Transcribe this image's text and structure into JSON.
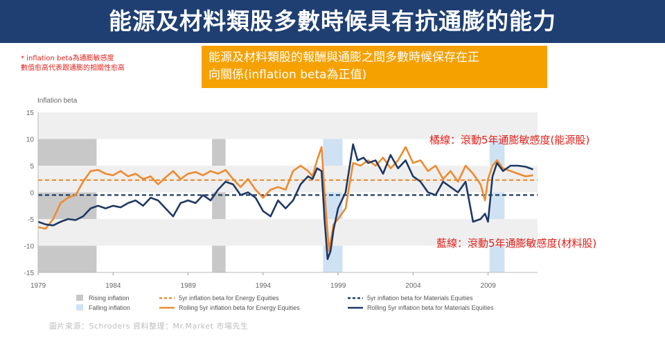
{
  "slide": {
    "title": "能源及材料類股多數時候具有抗通膨的能力",
    "footnote_line1": "* inflation  beta為通膨敏感度",
    "footnote_line2": "數值愈高代表跟通膨的相關性愈高",
    "callout_line1": "能源及材料類股的報酬與通膨之間多數時候保存在正",
    "callout_line2": "向關係(inflation beta為正值)",
    "annotation_orange": "橘線：滾動5年通膨敏感度(能源股)",
    "annotation_blue": "藍線：滾動5年通膨敏感度(材料股)",
    "source": "圖片來源：Schroders      資料整理：Mr.Market  市場先生"
  },
  "colors": {
    "title_bar": "#1f3f73",
    "callout": "#f5a100",
    "annotation": "#e0201a",
    "energy": "#ef8a2e",
    "materials": "#1f3864",
    "rising": "#c8c8c8",
    "falling": "#cfe2f4"
  },
  "chart_data": {
    "type": "line",
    "ylabel": "Inflation beta",
    "xlim": [
      1979,
      2012.3
    ],
    "ylim": [
      -15,
      15
    ],
    "y_ticks": [
      "15",
      "10",
      "5",
      "0",
      "-5",
      "-10",
      "-15"
    ],
    "x_ticks": [
      "1979",
      "1984",
      "1989",
      "1994",
      "1999",
      "2004",
      "2009"
    ],
    "shaded_periods": [
      {
        "type": "rising",
        "start": 1979.0,
        "end": 1982.9
      },
      {
        "type": "rising",
        "start": 1990.6,
        "end": 1991.5
      },
      {
        "type": "falling",
        "start": 1998.0,
        "end": 1999.3
      },
      {
        "type": "falling",
        "start": 2009.1,
        "end": 2010.1
      }
    ],
    "series": [
      {
        "name": "5yr inflation beta for Energy Equities",
        "style": "dashed",
        "constant": 2.3
      },
      {
        "name": "Rolling 5yr inflation beta for Energy Equities",
        "style": "solid",
        "x": [
          1979.0,
          1979.5,
          1980.0,
          1980.5,
          1981.0,
          1981.5,
          1982.0,
          1982.5,
          1983.0,
          1983.5,
          1984.0,
          1984.5,
          1985.0,
          1985.5,
          1986.0,
          1986.5,
          1987.0,
          1987.5,
          1988.0,
          1988.5,
          1989.0,
          1989.5,
          1990.0,
          1990.5,
          1991.0,
          1991.5,
          1992.0,
          1992.5,
          1993.0,
          1993.5,
          1994.0,
          1994.5,
          1995.0,
          1995.5,
          1996.0,
          1996.5,
          1997.0,
          1997.3,
          1997.6,
          1997.9,
          1998.1,
          1998.4,
          1998.7,
          1999.0,
          1999.5,
          2000.0,
          2000.5,
          2001.0,
          2001.5,
          2002.0,
          2002.5,
          2003.0,
          2003.5,
          2004.0,
          2004.5,
          2005.0,
          2005.5,
          2006.0,
          2006.5,
          2007.0,
          2007.5,
          2008.0,
          2008.5,
          2008.8,
          2009.0,
          2009.3,
          2009.6,
          2010.0,
          2010.5,
          2011.0,
          2011.5,
          2012.0
        ],
        "y": [
          -6.5,
          -6.8,
          -5.0,
          -2.0,
          -1.0,
          -0.5,
          2.0,
          4.0,
          4.2,
          3.5,
          3.2,
          4.0,
          3.0,
          3.5,
          2.5,
          3.0,
          1.5,
          2.8,
          4.0,
          2.5,
          3.5,
          3.8,
          3.2,
          4.0,
          3.5,
          4.2,
          2.5,
          1.0,
          2.5,
          0.5,
          -1.0,
          0.5,
          1.0,
          0.5,
          4.0,
          5.0,
          4.0,
          3.0,
          6.0,
          8.5,
          0.0,
          -11.0,
          -6.0,
          -5.0,
          -3.0,
          5.5,
          5.0,
          6.0,
          5.0,
          6.5,
          4.5,
          6.0,
          8.5,
          5.5,
          6.0,
          4.0,
          5.0,
          2.5,
          4.0,
          2.0,
          5.0,
          3.5,
          1.5,
          -1.5,
          2.5,
          5.0,
          6.0,
          4.5,
          4.0,
          3.5,
          3.0,
          3.2
        ]
      },
      {
        "name": "5yr inflation beta for Materials Equities",
        "style": "dashed",
        "constant": -0.5
      },
      {
        "name": "Rolling 5yr inflation beta for Materials Equities",
        "style": "solid",
        "x": [
          1979.0,
          1979.5,
          1980.0,
          1980.5,
          1981.0,
          1981.5,
          1982.0,
          1982.5,
          1983.0,
          1983.5,
          1984.0,
          1984.5,
          1985.0,
          1985.5,
          1986.0,
          1986.5,
          1987.0,
          1987.5,
          1988.0,
          1988.5,
          1989.0,
          1989.5,
          1990.0,
          1990.5,
          1991.0,
          1991.5,
          1992.0,
          1992.5,
          1993.0,
          1993.5,
          1994.0,
          1994.5,
          1995.0,
          1995.5,
          1996.0,
          1996.5,
          1997.0,
          1997.3,
          1997.6,
          1997.9,
          1998.1,
          1998.3,
          1998.5,
          1998.7,
          1999.0,
          1999.5,
          2000.0,
          2000.3,
          2000.7,
          2001.0,
          2001.5,
          2002.0,
          2002.5,
          2003.0,
          2003.5,
          2004.0,
          2004.5,
          2005.0,
          2005.5,
          2006.0,
          2006.5,
          2007.0,
          2007.5,
          2008.0,
          2008.5,
          2008.8,
          2009.0,
          2009.3,
          2009.6,
          2010.0,
          2010.5,
          2011.0,
          2011.5,
          2012.0
        ],
        "y": [
          -5.5,
          -6.0,
          -6.2,
          -5.5,
          -5.0,
          -5.2,
          -4.5,
          -3.0,
          -2.5,
          -3.0,
          -2.5,
          -2.8,
          -2.0,
          -1.5,
          -2.5,
          -1.0,
          -1.5,
          -3.0,
          -4.5,
          -2.0,
          -1.5,
          -2.0,
          -0.5,
          -1.5,
          0.5,
          2.0,
          1.5,
          -0.5,
          0.0,
          -1.0,
          -3.5,
          -4.5,
          -1.5,
          -3.0,
          -1.5,
          1.5,
          3.0,
          2.5,
          4.5,
          4.0,
          -5.0,
          -12.5,
          -11.0,
          -7.0,
          -3.0,
          0.0,
          9.0,
          6.0,
          6.5,
          5.5,
          6.0,
          3.5,
          7.0,
          4.5,
          6.0,
          3.0,
          2.0,
          0.0,
          -0.5,
          2.0,
          1.0,
          0.0,
          2.0,
          -5.5,
          -5.0,
          -4.0,
          -5.5,
          3.0,
          5.5,
          4.0,
          5.0,
          5.0,
          4.8,
          4.3
        ]
      }
    ],
    "legend": [
      {
        "label": "Rising inflation",
        "kind": "rising"
      },
      {
        "label": "Falling inflation",
        "kind": "falling"
      },
      {
        "label": "5yr inflation beta for Energy Equities",
        "kind": "energy-dash"
      },
      {
        "label": "Rolling 5yr inflation beta for Energy Equities",
        "kind": "energy-solid"
      },
      {
        "label": "5yr inflation beta for Materials Equities",
        "kind": "materials-dash"
      },
      {
        "label": "Rolling 5yr inflation beta for Materials Equities",
        "kind": "materials-solid"
      }
    ],
    "legend_placement": "bottom"
  }
}
